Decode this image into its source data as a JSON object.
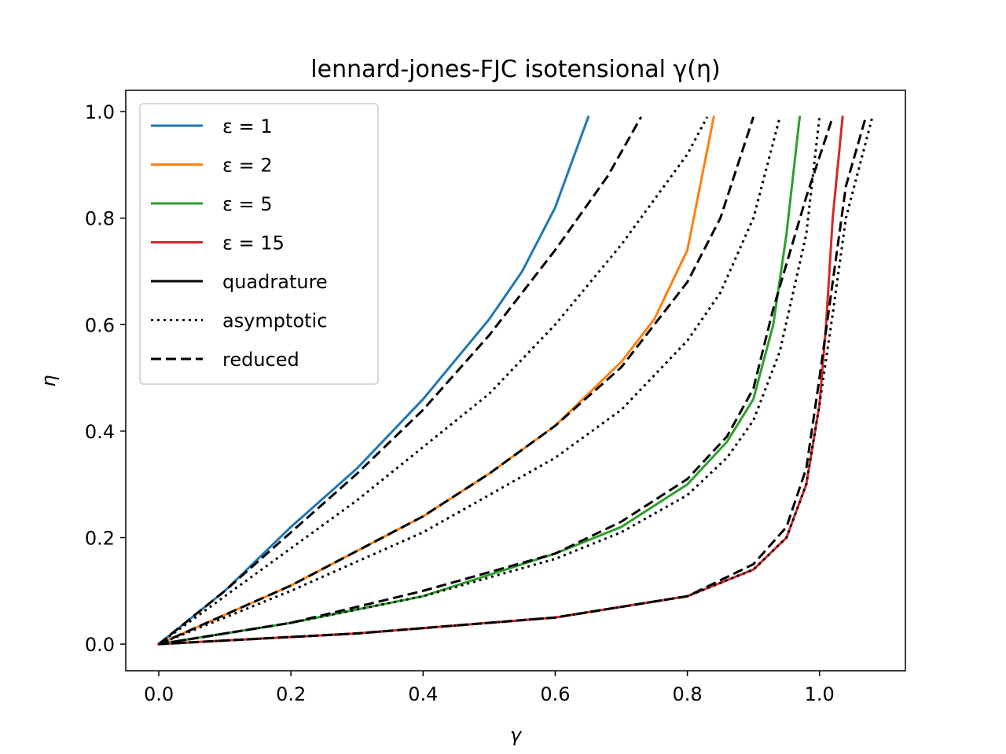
{
  "chart_data": {
    "type": "line",
    "title": "lennard-jones-FJC isotensional γ(η)",
    "xlabel": "γ",
    "ylabel": "η",
    "xlim": [
      -0.05,
      1.13
    ],
    "ylim": [
      -0.05,
      1.04
    ],
    "xticks": [
      0.0,
      0.2,
      0.4,
      0.6,
      0.8,
      1.0
    ],
    "yticks": [
      0.0,
      0.2,
      0.4,
      0.6,
      0.8,
      1.0
    ],
    "xtick_labels": [
      "0.0",
      "0.2",
      "0.4",
      "0.6",
      "0.8",
      "1.0"
    ],
    "ytick_labels": [
      "0.0",
      "0.2",
      "0.4",
      "0.6",
      "0.8",
      "1.0"
    ],
    "grid": false,
    "legend_placement": "upper-left",
    "legend": [
      {
        "label": "ε = 1",
        "color": "#1f77b4",
        "style": "solid"
      },
      {
        "label": "ε = 2",
        "color": "#ff7f0e",
        "style": "solid"
      },
      {
        "label": "ε = 5",
        "color": "#2ca02c",
        "style": "solid"
      },
      {
        "label": "ε = 15",
        "color": "#d62728",
        "style": "solid"
      },
      {
        "label": "quadrature",
        "color": "#000000",
        "style": "solid"
      },
      {
        "label": "asymptotic",
        "color": "#000000",
        "style": "dotted"
      },
      {
        "label": "reduced",
        "color": "#000000",
        "style": "dashed"
      }
    ],
    "series": [
      {
        "epsilon": 1,
        "method": "quadrature",
        "color": "#1f77b4",
        "style": "solid",
        "points": [
          [
            0,
            0
          ],
          [
            0.1,
            0.1
          ],
          [
            0.2,
            0.22
          ],
          [
            0.3,
            0.33
          ],
          [
            0.4,
            0.46
          ],
          [
            0.5,
            0.61
          ],
          [
            0.55,
            0.7
          ],
          [
            0.6,
            0.82
          ],
          [
            0.65,
            0.99
          ]
        ]
      },
      {
        "epsilon": 1,
        "method": "asymptotic",
        "color": "#000000",
        "style": "dotted",
        "points": [
          [
            0,
            0
          ],
          [
            0.1,
            0.09
          ],
          [
            0.2,
            0.18
          ],
          [
            0.3,
            0.27
          ],
          [
            0.4,
            0.37
          ],
          [
            0.5,
            0.47
          ],
          [
            0.6,
            0.6
          ],
          [
            0.7,
            0.75
          ],
          [
            0.8,
            0.92
          ],
          [
            0.83,
            0.99
          ]
        ]
      },
      {
        "epsilon": 1,
        "method": "reduced",
        "color": "#000000",
        "style": "dashed",
        "points": [
          [
            0,
            0
          ],
          [
            0.1,
            0.1
          ],
          [
            0.2,
            0.21
          ],
          [
            0.3,
            0.32
          ],
          [
            0.4,
            0.44
          ],
          [
            0.5,
            0.58
          ],
          [
            0.6,
            0.74
          ],
          [
            0.68,
            0.88
          ],
          [
            0.73,
            0.99
          ]
        ]
      },
      {
        "epsilon": 2,
        "method": "quadrature",
        "color": "#ff7f0e",
        "style": "solid",
        "points": [
          [
            0,
            0
          ],
          [
            0.2,
            0.11
          ],
          [
            0.4,
            0.24
          ],
          [
            0.5,
            0.32
          ],
          [
            0.6,
            0.41
          ],
          [
            0.7,
            0.53
          ],
          [
            0.75,
            0.61
          ],
          [
            0.8,
            0.74
          ],
          [
            0.84,
            0.99
          ]
        ]
      },
      {
        "epsilon": 2,
        "method": "asymptotic",
        "color": "#000000",
        "style": "dotted",
        "points": [
          [
            0,
            0
          ],
          [
            0.2,
            0.1
          ],
          [
            0.4,
            0.21
          ],
          [
            0.5,
            0.28
          ],
          [
            0.6,
            0.35
          ],
          [
            0.7,
            0.44
          ],
          [
            0.8,
            0.57
          ],
          [
            0.85,
            0.66
          ],
          [
            0.9,
            0.8
          ],
          [
            0.94,
            0.99
          ]
        ]
      },
      {
        "epsilon": 2,
        "method": "reduced",
        "color": "#000000",
        "style": "dashed",
        "points": [
          [
            0,
            0
          ],
          [
            0.2,
            0.11
          ],
          [
            0.4,
            0.24
          ],
          [
            0.5,
            0.32
          ],
          [
            0.6,
            0.41
          ],
          [
            0.7,
            0.52
          ],
          [
            0.8,
            0.68
          ],
          [
            0.85,
            0.8
          ],
          [
            0.9,
            0.99
          ]
        ]
      },
      {
        "epsilon": 5,
        "method": "quadrature",
        "color": "#2ca02c",
        "style": "solid",
        "points": [
          [
            0,
            0
          ],
          [
            0.2,
            0.04
          ],
          [
            0.4,
            0.09
          ],
          [
            0.6,
            0.17
          ],
          [
            0.7,
            0.22
          ],
          [
            0.8,
            0.3
          ],
          [
            0.86,
            0.38
          ],
          [
            0.9,
            0.46
          ],
          [
            0.93,
            0.6
          ],
          [
            0.95,
            0.77
          ],
          [
            0.97,
            0.99
          ]
        ]
      },
      {
        "epsilon": 5,
        "method": "asymptotic",
        "color": "#000000",
        "style": "dotted",
        "points": [
          [
            0,
            0
          ],
          [
            0.2,
            0.04
          ],
          [
            0.4,
            0.09
          ],
          [
            0.6,
            0.16
          ],
          [
            0.7,
            0.21
          ],
          [
            0.8,
            0.28
          ],
          [
            0.86,
            0.35
          ],
          [
            0.9,
            0.42
          ],
          [
            0.94,
            0.55
          ],
          [
            0.98,
            0.77
          ],
          [
            1.0,
            0.99
          ]
        ]
      },
      {
        "epsilon": 5,
        "method": "reduced",
        "color": "#000000",
        "style": "dashed",
        "points": [
          [
            0,
            0
          ],
          [
            0.2,
            0.04
          ],
          [
            0.4,
            0.1
          ],
          [
            0.6,
            0.17
          ],
          [
            0.7,
            0.23
          ],
          [
            0.8,
            0.31
          ],
          [
            0.86,
            0.39
          ],
          [
            0.9,
            0.48
          ],
          [
            0.93,
            0.63
          ],
          [
            0.98,
            0.84
          ],
          [
            1.02,
            0.99
          ]
        ]
      },
      {
        "epsilon": 15,
        "method": "quadrature",
        "color": "#d62728",
        "style": "solid",
        "points": [
          [
            0,
            0
          ],
          [
            0.3,
            0.02
          ],
          [
            0.6,
            0.05
          ],
          [
            0.8,
            0.09
          ],
          [
            0.9,
            0.14
          ],
          [
            0.95,
            0.2
          ],
          [
            0.98,
            0.3
          ],
          [
            1.0,
            0.45
          ],
          [
            1.01,
            0.6
          ],
          [
            1.02,
            0.8
          ],
          [
            1.035,
            0.99
          ]
        ]
      },
      {
        "epsilon": 15,
        "method": "asymptotic",
        "color": "#000000",
        "style": "dotted",
        "points": [
          [
            0,
            0
          ],
          [
            0.3,
            0.02
          ],
          [
            0.6,
            0.05
          ],
          [
            0.8,
            0.09
          ],
          [
            0.9,
            0.14
          ],
          [
            0.95,
            0.2
          ],
          [
            0.98,
            0.3
          ],
          [
            1.0,
            0.45
          ],
          [
            1.02,
            0.62
          ],
          [
            1.04,
            0.8
          ],
          [
            1.08,
            0.99
          ]
        ]
      },
      {
        "epsilon": 15,
        "method": "reduced",
        "color": "#000000",
        "style": "dashed",
        "points": [
          [
            0,
            0
          ],
          [
            0.3,
            0.02
          ],
          [
            0.6,
            0.05
          ],
          [
            0.8,
            0.09
          ],
          [
            0.9,
            0.15
          ],
          [
            0.95,
            0.22
          ],
          [
            0.98,
            0.33
          ],
          [
            1.0,
            0.5
          ],
          [
            1.02,
            0.68
          ],
          [
            1.04,
            0.86
          ],
          [
            1.07,
            0.99
          ]
        ]
      }
    ]
  }
}
